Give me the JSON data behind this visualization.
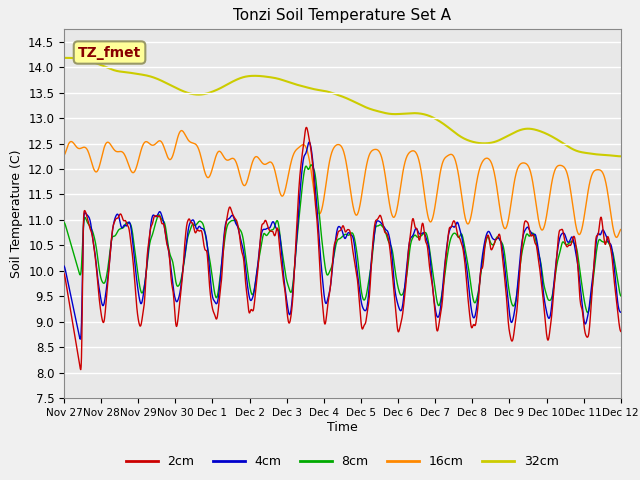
{
  "title": "Tonzi Soil Temperature Set A",
  "xlabel": "Time",
  "ylabel": "Soil Temperature (C)",
  "ylim": [
    7.5,
    14.75
  ],
  "annotation": "TZ_fmet",
  "bg_color": "#e8e8e8",
  "legend_labels": [
    "2cm",
    "4cm",
    "8cm",
    "16cm",
    "32cm"
  ],
  "line_colors": [
    "#cc0000",
    "#0000cc",
    "#00aa00",
    "#ff8800",
    "#cccc00"
  ],
  "xtick_labels": [
    "Nov 27",
    "Nov 28",
    "Nov 29",
    "Nov 30",
    "Dec 1",
    "Dec 2",
    "Dec 3",
    "Dec 4",
    "Dec 5",
    "Dec 6",
    "Dec 7",
    "Dec 8",
    "Dec 9",
    "Dec 10",
    "Dec 11",
    "Dec 12"
  ],
  "ytick_vals": [
    7.5,
    8.0,
    8.5,
    9.0,
    9.5,
    10.0,
    10.5,
    11.0,
    11.5,
    12.0,
    12.5,
    13.0,
    13.5,
    14.0,
    14.5
  ]
}
